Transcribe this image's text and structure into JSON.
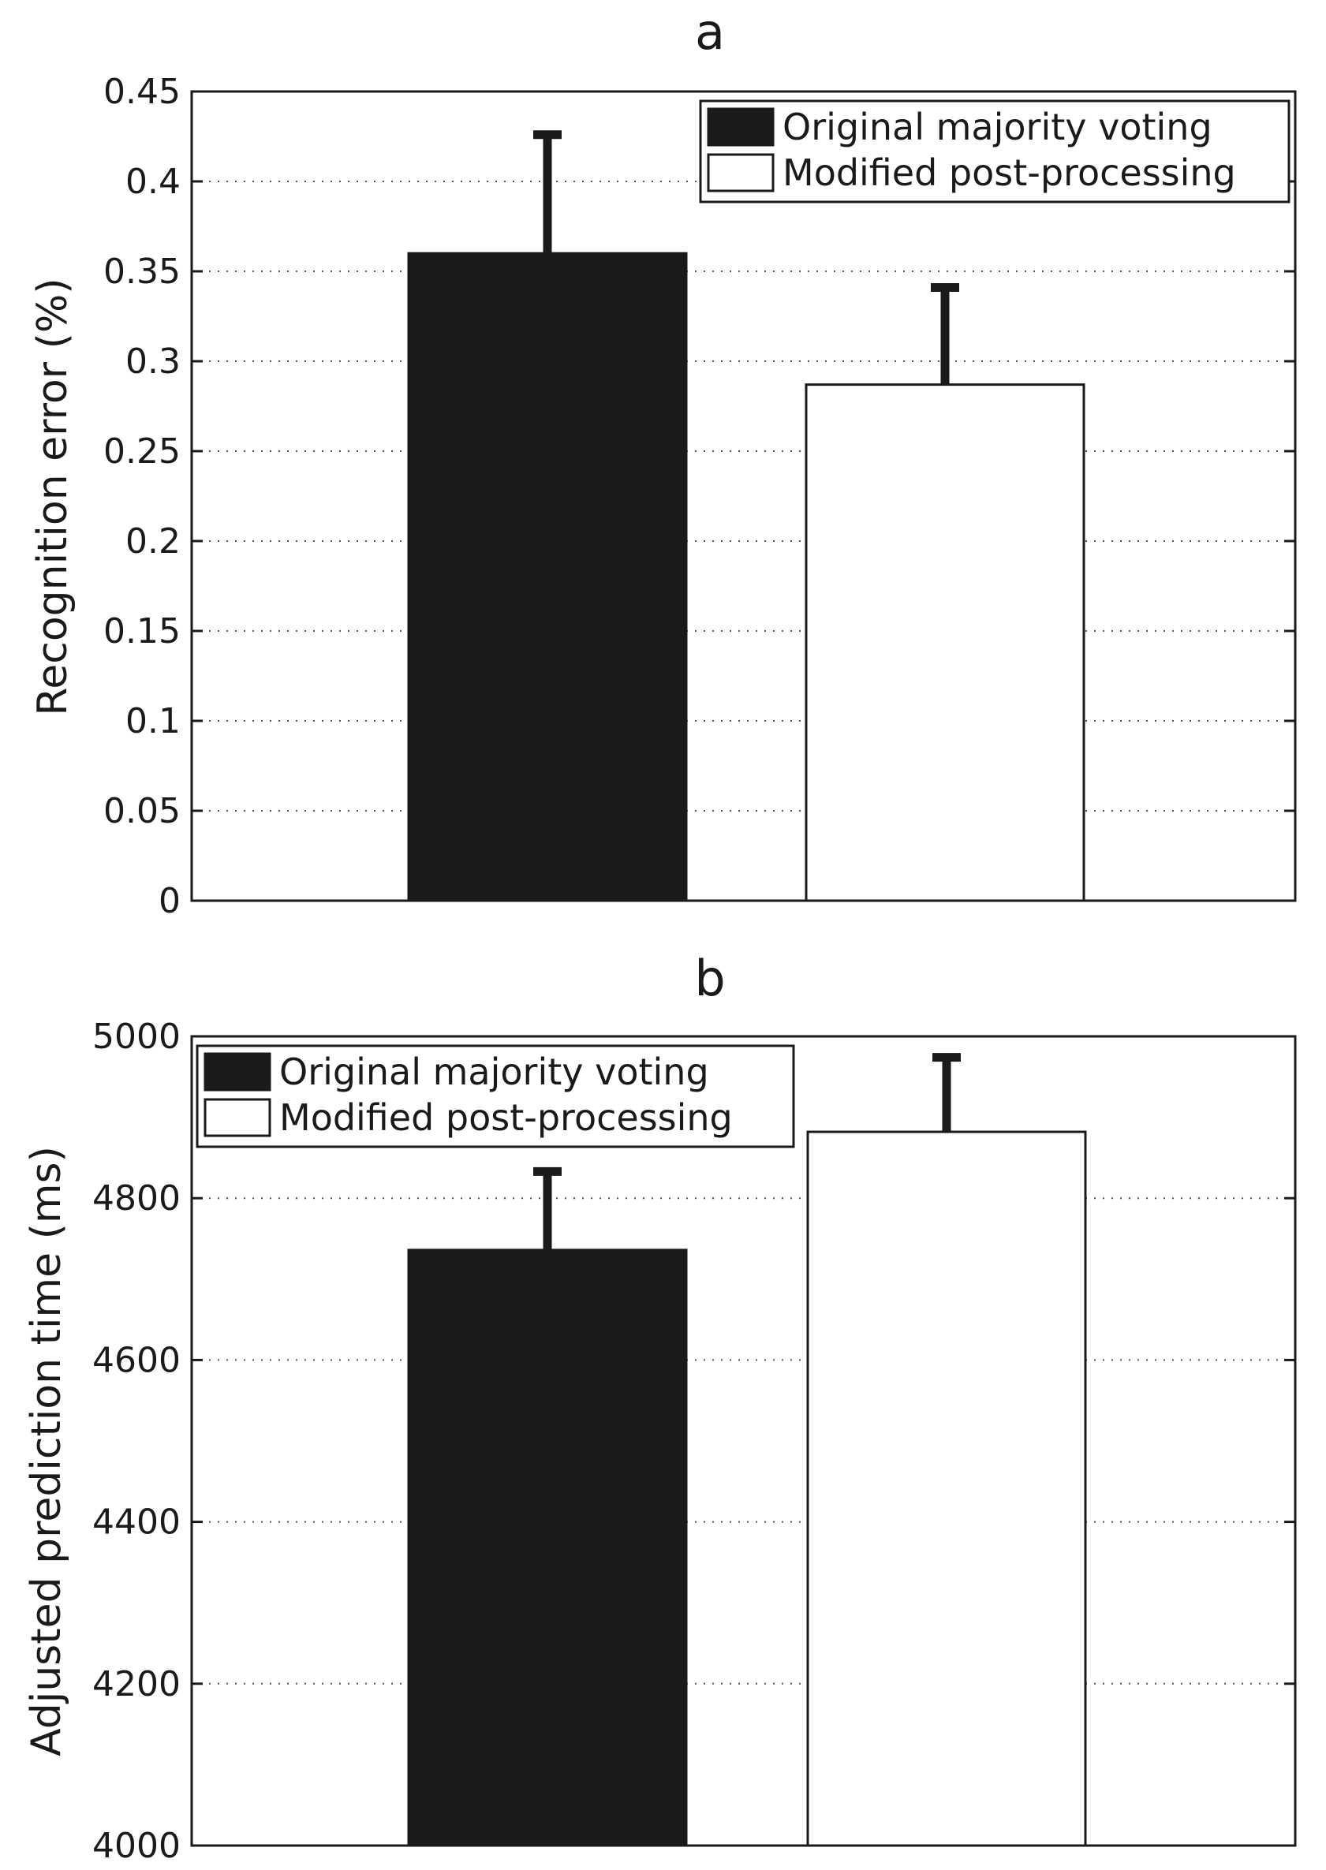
{
  "chart_data": [
    {
      "type": "bar",
      "title": "a",
      "ylabel": "Recognition error (%)",
      "ylim": [
        0,
        0.45
      ],
      "yticks": [
        "0",
        "0.05",
        "0.1",
        "0.15",
        "0.2",
        "0.25",
        "0.3",
        "0.35",
        "0.4",
        "0.45"
      ],
      "grid": "horizontal-dotted",
      "legend_position": "top-right",
      "series": [
        {
          "name": "Original majority voting",
          "value": 0.36,
          "error": 0.066,
          "color": "#1a1a1a"
        },
        {
          "name": "Modified post-processing",
          "value": 0.287,
          "error": 0.054,
          "color": "#ffffff"
        }
      ]
    },
    {
      "type": "bar",
      "title": "b",
      "ylabel": "Adjusted prediction time (ms)",
      "ylim": [
        4000,
        5000
      ],
      "yticks": [
        "4000",
        "4200",
        "4400",
        "4600",
        "4800",
        "5000"
      ],
      "grid": "horizontal-dotted",
      "legend_position": "top-left",
      "series": [
        {
          "name": "Original majority voting",
          "value": 4736,
          "error": 97,
          "color": "#1a1a1a"
        },
        {
          "name": "Modified post-processing",
          "value": 4882,
          "error": 92,
          "color": "#ffffff"
        }
      ]
    }
  ]
}
